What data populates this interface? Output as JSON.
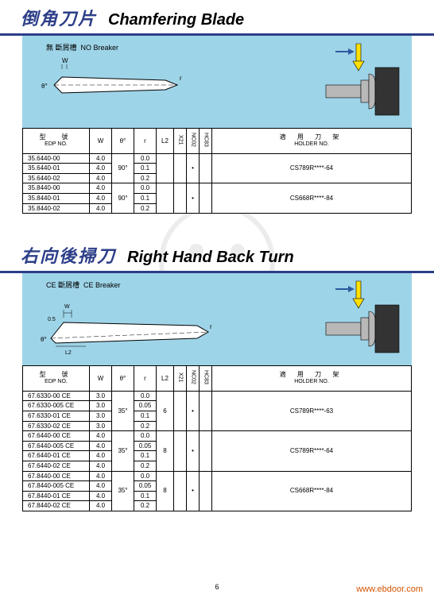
{
  "page_number": "6",
  "footer_url": "www.ebdoor.com",
  "watermark_text": "HOL",
  "colors": {
    "underline1": "#2c3e88",
    "title1_zh": "#2c3e88",
    "panel_bg": "#9ed4e8",
    "arrow": "#ffe000",
    "arrow_blue": "#2d5aa0",
    "holder_face": "#333333",
    "holder_shaft": "#b8b8b8"
  },
  "sections": [
    {
      "id": "chamfer",
      "title_zh": "倒角刀片",
      "title_en": "Chamfering Blade",
      "breaker_label_zh": "無 斷屑槽",
      "breaker_label_en": "NO Breaker",
      "diagram_labels": {
        "w": "W",
        "theta": "θ°",
        "r": "r"
      },
      "columns": {
        "edp_zh": "型　號",
        "edp_en": "EDP NO.",
        "w": "W",
        "theta": "θ°",
        "r": "r",
        "l2": "L2",
        "v1": "X21",
        "v2": "NC02",
        "v3": "HC83",
        "holder_zh": "適 用 刀 架",
        "holder_en": "HOLDER NO."
      },
      "groups": [
        {
          "theta": "90°",
          "l2": "",
          "v1": "",
          "v2": "•",
          "v3": "",
          "holder": "CS789R****-64",
          "rows": [
            {
              "edp": "35.6440-00",
              "w": "4.0",
              "r": "0.0"
            },
            {
              "edp": "35.6440-01",
              "w": "4.0",
              "r": "0.1"
            },
            {
              "edp": "35.6440-02",
              "w": "4.0",
              "r": "0.2"
            }
          ]
        },
        {
          "theta": "90°",
          "l2": "",
          "v1": "",
          "v2": "•",
          "v3": "",
          "holder": "CS668R****-84",
          "rows": [
            {
              "edp": "35.8440-00",
              "w": "4.0",
              "r": "0.0"
            },
            {
              "edp": "35.8440-01",
              "w": "4.0",
              "r": "0.1"
            },
            {
              "edp": "35.8440-02",
              "w": "4.0",
              "r": "0.2"
            }
          ]
        }
      ]
    },
    {
      "id": "rhbt",
      "title_zh": "右向後掃刀",
      "title_en": "Right Hand Back Turn",
      "breaker_label_zh": "CE 斷屑槽",
      "breaker_label_en": "CE Breaker",
      "diagram_labels": {
        "w": "W",
        "theta": "θ°",
        "r": "r",
        "l2": "L2",
        "h": "0.5"
      },
      "columns": {
        "edp_zh": "型　號",
        "edp_en": "EDP NO.",
        "w": "W",
        "theta": "θ°",
        "r": "r",
        "l2": "L2",
        "v1": "X21",
        "v2": "NC02",
        "v3": "HC83",
        "holder_zh": "適 用 刀 架",
        "holder_en": "HOLDER NO."
      },
      "groups": [
        {
          "theta": "35°",
          "l2": "6",
          "v1": "",
          "v2": "•",
          "v3": "",
          "holder": "CS789R****-63",
          "rows": [
            {
              "edp": "67.6330-00  CE",
              "w": "3.0",
              "r": "0.0"
            },
            {
              "edp": "67.6330-005 CE",
              "w": "3.0",
              "r": "0.05"
            },
            {
              "edp": "67.6330-01  CE",
              "w": "3.0",
              "r": "0.1"
            },
            {
              "edp": "67.6330-02  CE",
              "w": "3.0",
              "r": "0.2"
            }
          ]
        },
        {
          "theta": "35°",
          "l2": "8",
          "v1": "",
          "v2": "•",
          "v3": "",
          "holder": "CS789R****-64",
          "rows": [
            {
              "edp": "67.6440-00  CE",
              "w": "4.0",
              "r": "0.0"
            },
            {
              "edp": "67.6440-005 CE",
              "w": "4.0",
              "r": "0.05"
            },
            {
              "edp": "67.6440-01  CE",
              "w": "4.0",
              "r": "0.1"
            },
            {
              "edp": "67.6440-02  CE",
              "w": "4.0",
              "r": "0.2"
            }
          ]
        },
        {
          "theta": "35°",
          "l2": "8",
          "v1": "",
          "v2": "•",
          "v3": "",
          "holder": "CS668R****-84",
          "rows": [
            {
              "edp": "67.8440-00  CE",
              "w": "4.0",
              "r": "0.0"
            },
            {
              "edp": "67.8440-005 CE",
              "w": "4.0",
              "r": "0.05"
            },
            {
              "edp": "67.8440-01  CE",
              "w": "4.0",
              "r": "0.1"
            },
            {
              "edp": "67.8440-02  CE",
              "w": "4.0",
              "r": "0.2"
            }
          ]
        }
      ]
    }
  ]
}
